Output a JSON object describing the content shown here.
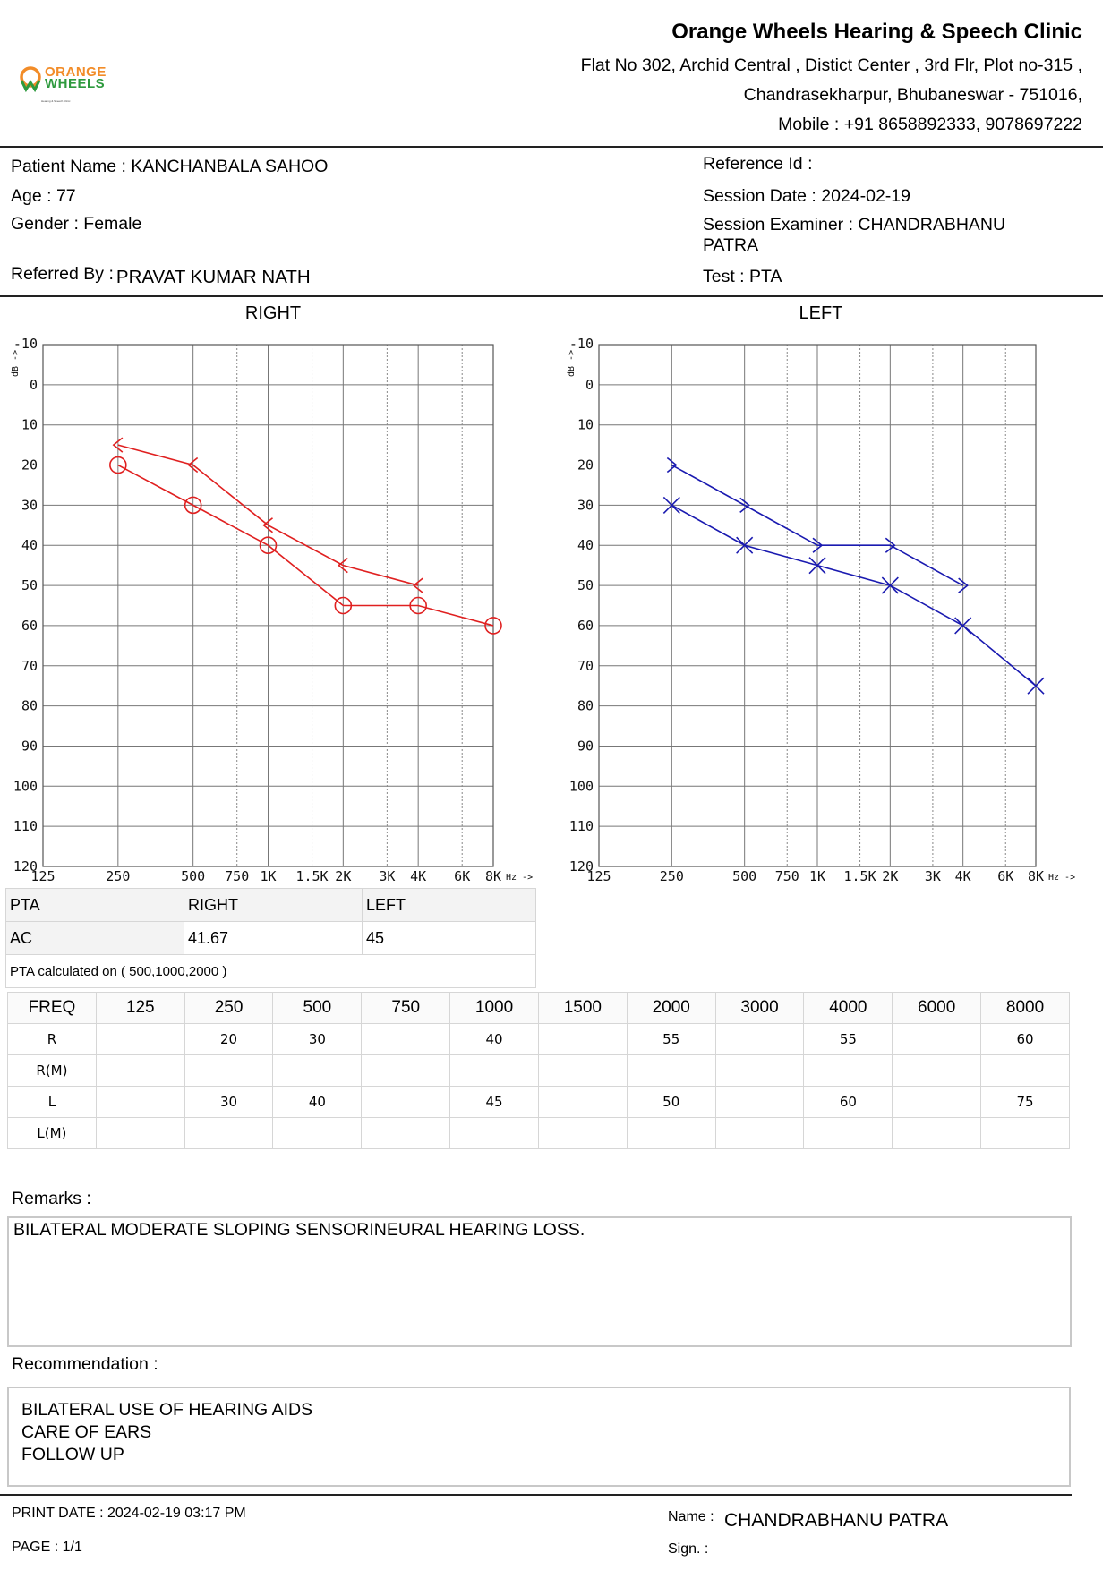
{
  "clinic": {
    "logo_text_line1": "ORANGE",
    "logo_text_line2": "WHEELS",
    "logo_tagline": "Hearing & Speech Clinic",
    "name": "Orange Wheels Hearing & Speech Clinic",
    "address_line1": "Flat No 302, Archid Central , Distict Center , 3rd Flr, Plot no-315 ,",
    "address_line2": "Chandrasekharpur, Bhubaneswar - 751016,",
    "mobile": "Mobile : +91 8658892333, 9078697222"
  },
  "patient": {
    "name_label": "Patient Name : ",
    "name": "KANCHANBALA SAHOO",
    "age_label": "Age : ",
    "age": "77",
    "gender_label": "Gender : ",
    "gender": "Female",
    "referred_label": "Referred By :",
    "referred_by": "PRAVAT KUMAR NATH"
  },
  "session": {
    "reference_label": "Reference Id :",
    "reference_id": "",
    "date_label": "Session Date : ",
    "date": "2024-02-19",
    "examiner_label": "Session Examiner : ",
    "examiner_line1": "CHANDRABHANU",
    "examiner_line2": "PATRA",
    "test_label": "Test : ",
    "test": "PTA"
  },
  "chart_data": [
    {
      "type": "line",
      "title": "RIGHT",
      "ylabel": "dB ->",
      "xlabel": "Hz ->",
      "ylim": [
        -10,
        120
      ],
      "y_inverted": true,
      "y_ticks": [
        -10,
        0,
        10,
        20,
        30,
        40,
        50,
        60,
        70,
        80,
        90,
        100,
        110,
        120
      ],
      "x_ticks": [
        "125",
        "250",
        "500",
        "750",
        "1K",
        "1.5K",
        "2K",
        "3K",
        "4K",
        "6K",
        "8K"
      ],
      "x_scale": "octave",
      "grid": true,
      "color": "#e02020",
      "series": [
        {
          "symbol": "circle",
          "x": [
            250,
            500,
            1000,
            2000,
            4000,
            8000
          ],
          "values": [
            20,
            30,
            40,
            55,
            55,
            60
          ]
        },
        {
          "symbol": "less-than",
          "x": [
            250,
            500,
            1000,
            2000,
            4000
          ],
          "values": [
            15,
            20,
            35,
            45,
            50
          ]
        }
      ]
    },
    {
      "type": "line",
      "title": "LEFT",
      "ylabel": "dB ->",
      "xlabel": "Hz ->",
      "ylim": [
        -10,
        120
      ],
      "y_inverted": true,
      "y_ticks": [
        -10,
        0,
        10,
        20,
        30,
        40,
        50,
        60,
        70,
        80,
        90,
        100,
        110,
        120
      ],
      "x_ticks": [
        "125",
        "250",
        "500",
        "750",
        "1K",
        "1.5K",
        "2K",
        "3K",
        "4K",
        "6K",
        "8K"
      ],
      "x_scale": "octave",
      "grid": true,
      "color": "#1a1ab0",
      "series": [
        {
          "symbol": "cross",
          "x": [
            250,
            500,
            1000,
            2000,
            4000,
            8000
          ],
          "values": [
            30,
            40,
            45,
            50,
            60,
            75
          ]
        },
        {
          "symbol": "greater-than",
          "x": [
            250,
            500,
            1000,
            2000,
            4000
          ],
          "values": [
            20,
            30,
            40,
            40,
            50
          ]
        }
      ]
    }
  ],
  "pta": {
    "header": [
      "PTA",
      "RIGHT",
      "LEFT"
    ],
    "row_label": "AC",
    "right": "41.67",
    "left": "45",
    "note": "PTA calculated on ( 500,1000,2000 )"
  },
  "freq_table": {
    "headers": [
      "FREQ",
      "125",
      "250",
      "500",
      "750",
      "1000",
      "1500",
      "2000",
      "3000",
      "4000",
      "6000",
      "8000"
    ],
    "rows": [
      [
        "R",
        "",
        "20",
        "30",
        "",
        "40",
        "",
        "55",
        "",
        "55",
        "",
        "60"
      ],
      [
        "R(M)",
        "",
        "",
        "",
        "",
        "",
        "",
        "",
        "",
        "",
        "",
        ""
      ],
      [
        "L",
        "",
        "30",
        "40",
        "",
        "45",
        "",
        "50",
        "",
        "60",
        "",
        "75"
      ],
      [
        "L(M)",
        "",
        "",
        "",
        "",
        "",
        "",
        "",
        "",
        "",
        "",
        ""
      ]
    ]
  },
  "remarks": {
    "label": "Remarks :",
    "text": "BILATERAL MODERATE SLOPING SENSORINEURAL HEARING LOSS."
  },
  "recommendation": {
    "label": "Recommendation :",
    "lines": [
      "BILATERAL USE OF HEARING AIDS",
      "CARE OF EARS",
      "FOLLOW UP"
    ]
  },
  "footer": {
    "print_date": "PRINT DATE : 2024-02-19 03:17 PM",
    "page": "PAGE : 1/1",
    "name_label": "Name :",
    "name": "CHANDRABHANU PATRA",
    "sign_label": "Sign. :"
  }
}
